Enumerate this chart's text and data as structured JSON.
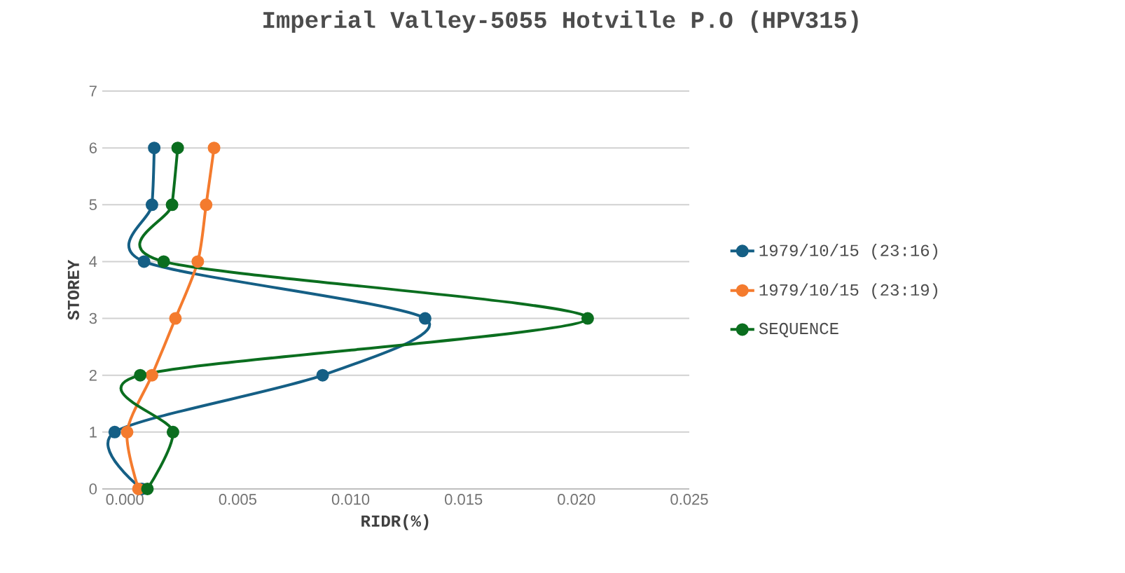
{
  "chart_data": {
    "type": "line",
    "title": "Imperial Valley-5055 Hotville P.O (HPV315)",
    "xlabel": "RIDR(%)",
    "ylabel": "STOREY",
    "xlim": [
      -0.001,
      0.025
    ],
    "xticks": [
      {
        "value": 0,
        "label": "0.000"
      },
      0.005,
      {
        "value": 0.01,
        "label": "0.010"
      },
      0.015,
      {
        "value": 0.02,
        "label": "0.020"
      },
      0.025
    ],
    "ylim": [
      0,
      7
    ],
    "yticks": [
      0,
      1,
      2,
      3,
      4,
      5,
      6,
      7
    ],
    "grid": "y",
    "legend": "right",
    "marker": "circle",
    "line_style": "solid",
    "series": [
      {
        "name": "1979/10/15 (23:16)",
        "color": "#155f85",
        "x": [
          0.00075,
          -0.00045,
          0.00876,
          0.0133,
          0.00085,
          0.0012,
          0.0013
        ],
        "values": [
          0,
          1,
          2,
          3,
          4,
          5,
          6
        ]
      },
      {
        "name": "1979/10/15 (23:19)",
        "color": "#f47b2e",
        "x": [
          0.0006,
          0.0001,
          0.0012,
          0.00224,
          0.00323,
          0.0036,
          0.00395
        ],
        "values": [
          0,
          1,
          2,
          3,
          4,
          5,
          6
        ]
      },
      {
        "name": "SEQUENCE",
        "color": "#0b6e1f",
        "x": [
          0.001,
          0.00213,
          0.00068,
          0.0205,
          0.00172,
          0.00209,
          0.00234
        ],
        "values": [
          0,
          1,
          2,
          3,
          4,
          5,
          6
        ]
      }
    ]
  }
}
